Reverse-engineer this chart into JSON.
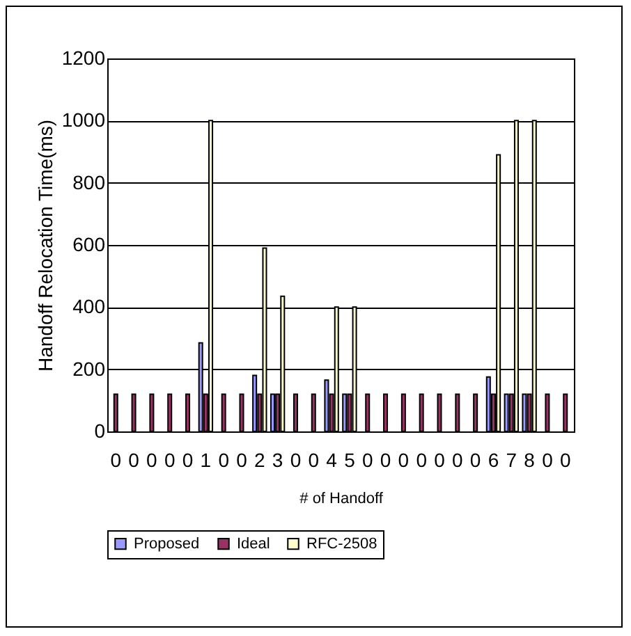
{
  "chart_data": {
    "type": "bar",
    "xlabel": "# of Handoff",
    "ylabel": "Handoff Relocation Time(ms)",
    "categories": [
      "0",
      "0",
      "0",
      "0",
      "0",
      "1",
      "0",
      "0",
      "2",
      "3",
      "0",
      "0",
      "4",
      "5",
      "0",
      "0",
      "0",
      "0",
      "0",
      "0",
      "0",
      "6",
      "7",
      "8",
      "0",
      "0"
    ],
    "series": [
      {
        "name": "Proposed",
        "color": "#9999ff",
        "values": [
          null,
          null,
          null,
          null,
          null,
          285,
          null,
          null,
          180,
          120,
          null,
          null,
          165,
          120,
          null,
          null,
          null,
          null,
          null,
          null,
          null,
          175,
          120,
          120,
          null,
          null
        ]
      },
      {
        "name": "Ideal",
        "color": "#993366",
        "values": [
          120,
          120,
          120,
          120,
          120,
          120,
          120,
          120,
          120,
          120,
          120,
          120,
          120,
          120,
          120,
          120,
          120,
          120,
          120,
          120,
          120,
          120,
          120,
          120,
          120,
          120
        ]
      },
      {
        "name": "RFC-2508",
        "color": "#ffffcc",
        "values": [
          null,
          null,
          null,
          null,
          null,
          1000,
          null,
          null,
          590,
          435,
          null,
          null,
          400,
          400,
          null,
          null,
          null,
          null,
          null,
          null,
          null,
          890,
          1000,
          1000,
          null,
          null
        ]
      }
    ],
    "ylim": [
      0,
      1200
    ],
    "yticks": [
      0,
      200,
      400,
      600,
      800,
      1000,
      1200
    ],
    "grid": "y",
    "legend": "bottom"
  }
}
